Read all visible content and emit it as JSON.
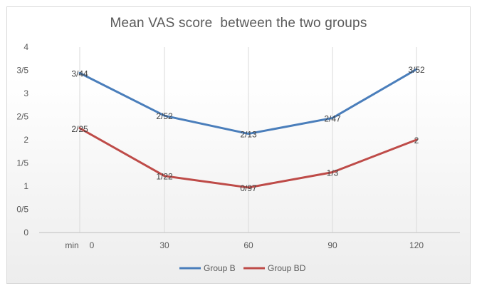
{
  "chart_data": {
    "type": "line",
    "title": "Mean VAS score  between the two groups",
    "x_axis_prefix": "min",
    "categories": [
      "0",
      "30",
      "60",
      "90",
      "120"
    ],
    "y_tick_labels": [
      "0",
      "0/5",
      "1",
      "1/5",
      "2",
      "2/5",
      "3",
      "3/5",
      "4"
    ],
    "ylim": [
      0,
      4
    ],
    "grid": "vertical",
    "legend_position": "bottom",
    "series": [
      {
        "name": "Group B",
        "color": "#4a7ebb",
        "values": [
          3.44,
          2.52,
          2.13,
          2.47,
          3.52
        ],
        "data_labels": [
          "3/44",
          "2/52",
          "2/13",
          "2/47",
          "3/52"
        ]
      },
      {
        "name": "Group BD",
        "color": "#be4b48",
        "values": [
          2.25,
          1.22,
          0.97,
          1.3,
          2
        ],
        "data_labels": [
          "2/25",
          "1/22",
          "0/97",
          "1/3",
          "2"
        ]
      }
    ]
  }
}
